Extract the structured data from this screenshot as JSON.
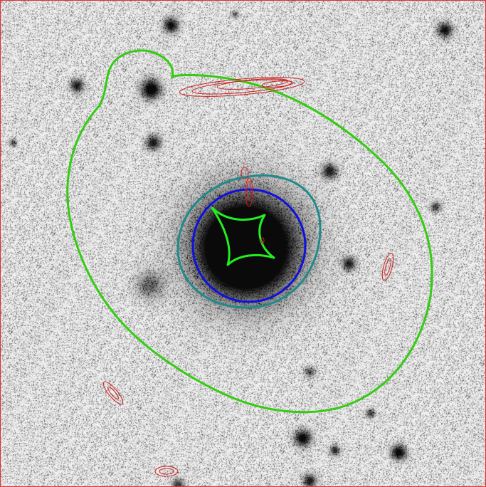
{
  "image": {
    "description_free": true,
    "background_color": "#f4f4f4",
    "noise_color": "#1a1a1a",
    "frame_color": "#e03030"
  },
  "curves": {
    "outer_critical_color": "#33cc11",
    "tangential_critical_color": "#1f8a8a",
    "radial_critical_color": "#1010dd",
    "caustic_color": "#22ee22",
    "arc_contour_color": "#cc2020"
  }
}
